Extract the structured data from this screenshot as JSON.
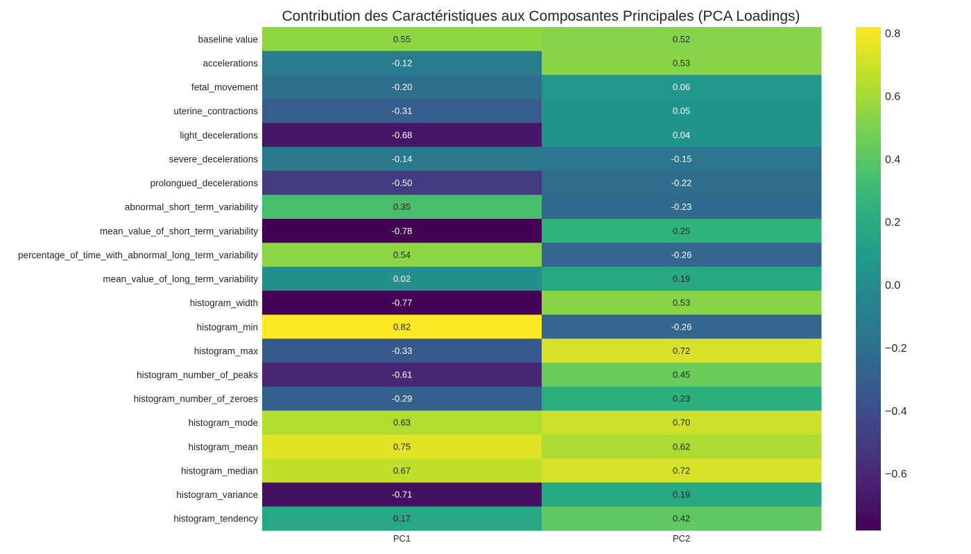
{
  "chart_data": {
    "type": "heatmap",
    "title": "Contribution des Caractéristiques aux Composantes Principales (PCA Loadings)",
    "columns": [
      "PC1",
      "PC2"
    ],
    "rows": [
      "baseline value",
      "accelerations",
      "fetal_movement",
      "uterine_contractions",
      "light_decelerations",
      "severe_decelerations",
      "prolongued_decelerations",
      "abnormal_short_term_variability",
      "mean_value_of_short_term_variability",
      "percentage_of_time_with_abnormal_long_term_variability",
      "mean_value_of_long_term_variability",
      "histogram_width",
      "histogram_min",
      "histogram_max",
      "histogram_number_of_peaks",
      "histogram_number_of_zeroes",
      "histogram_mode",
      "histogram_mean",
      "histogram_median",
      "histogram_variance",
      "histogram_tendency"
    ],
    "values": [
      [
        0.55,
        0.52
      ],
      [
        -0.12,
        0.53
      ],
      [
        -0.2,
        0.06
      ],
      [
        -0.31,
        0.05
      ],
      [
        -0.68,
        0.04
      ],
      [
        -0.14,
        -0.15
      ],
      [
        -0.5,
        -0.22
      ],
      [
        0.35,
        -0.23
      ],
      [
        -0.78,
        0.25
      ],
      [
        0.54,
        -0.26
      ],
      [
        0.02,
        0.19
      ],
      [
        -0.77,
        0.53
      ],
      [
        0.82,
        -0.26
      ],
      [
        -0.33,
        0.72
      ],
      [
        -0.61,
        0.45
      ],
      [
        -0.29,
        0.23
      ],
      [
        0.63,
        0.7
      ],
      [
        0.75,
        0.62
      ],
      [
        0.67,
        0.72
      ],
      [
        -0.71,
        0.19
      ],
      [
        0.17,
        0.42
      ]
    ],
    "value_labels": [
      [
        "0.55",
        "0.52"
      ],
      [
        "-0.12",
        "0.53"
      ],
      [
        "-0.20",
        "0.06"
      ],
      [
        "-0.31",
        "0.05"
      ],
      [
        "-0.68",
        "0.04"
      ],
      [
        "-0.14",
        "-0.15"
      ],
      [
        "-0.50",
        "-0.22"
      ],
      [
        "0.35",
        "-0.23"
      ],
      [
        "-0.78",
        "0.25"
      ],
      [
        "0.54",
        "-0.26"
      ],
      [
        "0.02",
        "0.19"
      ],
      [
        "-0.77",
        "0.53"
      ],
      [
        "0.82",
        "-0.26"
      ],
      [
        "-0.33",
        "0.72"
      ],
      [
        "-0.61",
        "0.45"
      ],
      [
        "-0.29",
        "0.23"
      ],
      [
        "0.63",
        "0.70"
      ],
      [
        "0.75",
        "0.62"
      ],
      [
        "0.67",
        "0.72"
      ],
      [
        "-0.71",
        "0.19"
      ],
      [
        "0.17",
        "0.42"
      ]
    ],
    "colormap": "viridis",
    "vmin": -0.78,
    "vmax": 0.82,
    "colorbar_ticks": [
      0.8,
      0.6,
      0.4,
      0.2,
      0.0,
      -0.2,
      -0.4,
      -0.6
    ],
    "colorbar_tick_labels": [
      "0.8",
      "0.6",
      "0.4",
      "0.2",
      "0.0",
      "−0.2",
      "−0.4",
      "−0.6"
    ],
    "grid": false,
    "legend": "colorbar-right"
  }
}
